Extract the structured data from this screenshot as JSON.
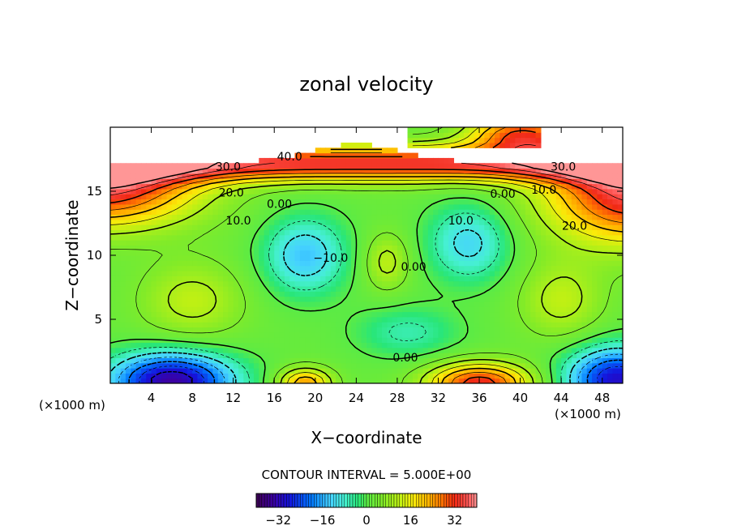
{
  "chart_data": {
    "type": "heatmap",
    "title": "zonal velocity",
    "xlabel": "X−coordinate",
    "ylabel": "Z−coordinate",
    "x_unit_left": "(×1000 m)",
    "x_unit_right": "(×1000 m)",
    "xlim": [
      0,
      50
    ],
    "ylim": [
      0,
      20
    ],
    "x_ticks": [
      4,
      8,
      12,
      16,
      20,
      24,
      28,
      32,
      36,
      40,
      44,
      48
    ],
    "y_ticks": [
      5,
      10,
      15
    ],
    "contour_interval_text": "CONTOUR INTERVAL = 5.000E+00",
    "colorbar": {
      "range": [
        -40,
        40
      ],
      "ticks": [
        -32,
        -16,
        0,
        16,
        32
      ],
      "tick_labels": [
        "−32",
        "−16",
        "0",
        "16",
        "32"
      ]
    },
    "contour_labels": [
      {
        "text": "40.0",
        "x": 17.5,
        "y": 17.4
      },
      {
        "text": "30.0",
        "x": 11.5,
        "y": 16.6
      },
      {
        "text": "30.0",
        "x": 44.2,
        "y": 16.6
      },
      {
        "text": "20.0",
        "x": 11.8,
        "y": 14.6
      },
      {
        "text": "20.0",
        "x": 45.3,
        "y": 12.0
      },
      {
        "text": "10.0",
        "x": 12.5,
        "y": 12.4
      },
      {
        "text": "10.0",
        "x": 42.3,
        "y": 14.8
      },
      {
        "text": "10.0",
        "x": 34.2,
        "y": 12.4
      },
      {
        "text": "0.00",
        "x": 16.5,
        "y": 13.7
      },
      {
        "text": "0.00",
        "x": 38.3,
        "y": 14.5
      },
      {
        "text": "0.00",
        "x": 29.6,
        "y": 8.8
      },
      {
        "text": "0.00",
        "x": 28.8,
        "y": 1.7
      },
      {
        "text": "−10.0",
        "x": 21.5,
        "y": 9.5
      }
    ],
    "features": [
      {
        "name": "upper jet",
        "x": 0,
        "z": 16,
        "value": 35
      },
      {
        "name": "upper jet",
        "x": 50,
        "z": 16,
        "value": 35
      },
      {
        "name": "top-right maximum",
        "x": 40,
        "z": 19,
        "value": 25
      },
      {
        "name": "deep minimum",
        "x": 7,
        "z": 0.5,
        "value": -34
      },
      {
        "name": "deep minimum",
        "x": 49,
        "z": 0.5,
        "value": -30
      },
      {
        "name": "interior minimum",
        "x": 19,
        "z": 10,
        "value": -15
      },
      {
        "name": "interior minimum",
        "x": 35,
        "z": 11,
        "value": -14
      },
      {
        "name": "interior maximum",
        "x": 27,
        "z": 9.5,
        "value": 10
      },
      {
        "name": "surface maximum",
        "x": 36,
        "z": 0.3,
        "value": 32
      },
      {
        "name": "surface maximum",
        "x": 19,
        "z": 0.2,
        "value": 22
      }
    ]
  }
}
